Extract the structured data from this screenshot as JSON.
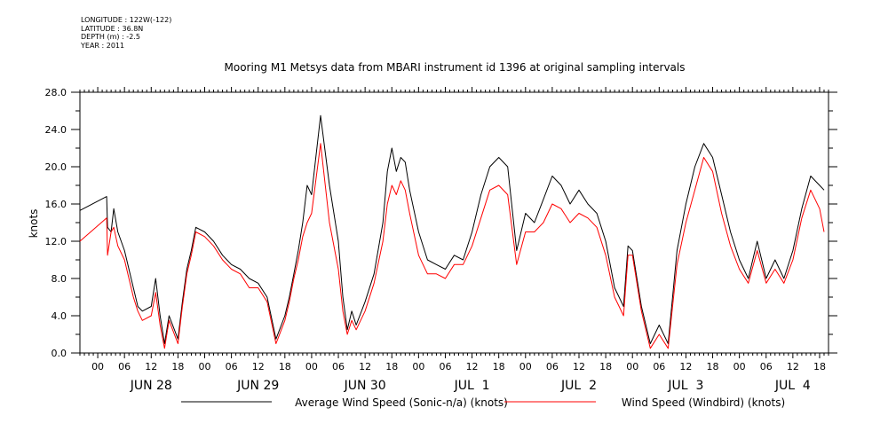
{
  "meta": {
    "longitude": "LONGITUDE : 122W(-122)",
    "latitude": "LATITUDE : 36.8N",
    "depth": "DEPTH (m) : -2.5",
    "year": "YEAR : 2011"
  },
  "chart_data": {
    "type": "line",
    "title": "Mooring M1 Metsys data from MBARI instrument id 1396 at original sampling intervals",
    "ylabel": "knots",
    "xlabel": "",
    "ylim": [
      0,
      28
    ],
    "xlim_hours": [
      -4,
      164
    ],
    "y_ticks": [
      "0.0",
      "4.0",
      "8.0",
      "12.0",
      "16.0",
      "20.0",
      "24.0",
      "28.0"
    ],
    "x_hour_ticks": [
      "00",
      "06",
      "12",
      "18",
      "00",
      "06",
      "12",
      "18",
      "00",
      "06",
      "12",
      "18",
      "00",
      "06",
      "12",
      "18",
      "00",
      "06",
      "12",
      "18",
      "00",
      "06",
      "12",
      "18",
      "00",
      "06",
      "12",
      "18"
    ],
    "day_labels": [
      "JUN 28",
      "JUN 29",
      "JUN 30",
      "JUL  1",
      "JUL  2",
      "JUL  3",
      "JUL  4"
    ],
    "grid": false,
    "legend_position": "bottom",
    "series": [
      {
        "name": "Average Wind Speed (Sonic-n/a) (knots)",
        "color": "#000000",
        "x": [
          -4,
          2,
          2.2,
          3,
          3.6,
          4.5,
          6,
          7,
          8,
          9,
          10,
          12,
          13,
          14,
          15,
          16,
          18,
          19,
          20,
          21,
          22,
          24,
          26,
          28,
          30,
          32,
          34,
          36,
          38,
          40,
          42,
          43,
          44,
          45,
          46,
          47,
          48,
          50,
          52,
          54,
          55,
          56,
          57,
          58,
          60,
          62,
          64,
          65,
          66,
          67,
          68,
          69,
          70,
          72,
          74,
          76,
          78,
          80,
          82,
          84,
          86,
          88,
          90,
          92,
          94,
          96,
          98,
          100,
          102,
          104,
          106,
          108,
          110,
          112,
          114,
          116,
          118,
          119,
          120,
          122,
          124,
          126,
          128,
          130,
          132,
          134,
          136,
          138,
          140,
          142,
          144,
          146,
          148,
          150,
          152,
          154,
          156,
          158,
          160,
          162,
          163
        ],
        "y": [
          15.3,
          16.8,
          13.5,
          13.0,
          15.5,
          13.0,
          11.0,
          9.0,
          7.0,
          5.0,
          4.5,
          5.0,
          8.0,
          4.0,
          1.0,
          4.0,
          1.5,
          5.5,
          9.0,
          11.0,
          13.5,
          13.0,
          12.0,
          10.5,
          9.5,
          9.0,
          8.0,
          7.5,
          6.0,
          1.5,
          4.0,
          6.0,
          8.5,
          11.0,
          14.0,
          18.0,
          17.0,
          25.5,
          18.0,
          12.0,
          6.0,
          2.5,
          4.5,
          3.0,
          5.5,
          8.5,
          14.0,
          19.5,
          22.0,
          19.5,
          21.0,
          20.5,
          17.5,
          13.0,
          10.0,
          9.5,
          9.0,
          10.5,
          10.0,
          13.0,
          17.0,
          20.0,
          21.0,
          20.0,
          11.0,
          15.0,
          14.0,
          16.5,
          19.0,
          18.0,
          16.0,
          17.5,
          16.0,
          15.0,
          12.0,
          7.0,
          5.0,
          11.5,
          11.0,
          5.0,
          1.0,
          3.0,
          1.0,
          11.0,
          16.0,
          20.0,
          22.5,
          21.0,
          17.0,
          13.0,
          10.0,
          8.0,
          12.0,
          8.0,
          10.0,
          8.0,
          11.0,
          15.5,
          19.0,
          18.0,
          17.5
        ]
      },
      {
        "name": "Wind Speed (Windbird) (knots)",
        "color": "#ff0000",
        "x": [
          -4,
          2,
          2.2,
          3,
          3.6,
          4.5,
          6,
          7,
          8,
          9,
          10,
          12,
          13,
          14,
          15,
          16,
          18,
          19,
          20,
          21,
          22,
          24,
          26,
          28,
          30,
          32,
          34,
          36,
          38,
          40,
          42,
          43,
          44,
          45,
          46,
          47,
          48,
          50,
          52,
          54,
          55,
          56,
          57,
          58,
          60,
          62,
          64,
          65,
          66,
          67,
          68,
          69,
          70,
          72,
          74,
          76,
          78,
          80,
          82,
          84,
          86,
          88,
          90,
          92,
          94,
          96,
          98,
          100,
          102,
          104,
          106,
          108,
          110,
          112,
          114,
          116,
          118,
          119,
          120,
          122,
          124,
          126,
          128,
          130,
          132,
          134,
          136,
          138,
          140,
          142,
          144,
          146,
          148,
          150,
          152,
          154,
          156,
          158,
          160,
          162,
          163
        ],
        "y": [
          12.0,
          14.5,
          10.5,
          13.0,
          13.5,
          11.5,
          10.0,
          8.0,
          6.0,
          4.5,
          3.5,
          4.0,
          6.5,
          3.0,
          0.5,
          3.5,
          1.0,
          5.0,
          8.5,
          10.5,
          13.0,
          12.5,
          11.5,
          10.0,
          9.0,
          8.5,
          7.0,
          7.0,
          5.5,
          1.0,
          3.5,
          5.5,
          8.0,
          10.0,
          12.5,
          14.0,
          15.0,
          22.5,
          14.0,
          9.0,
          4.5,
          2.0,
          3.5,
          2.5,
          4.5,
          7.5,
          12.0,
          16.0,
          18.0,
          17.0,
          18.5,
          17.5,
          15.0,
          10.5,
          8.5,
          8.5,
          8.0,
          9.5,
          9.5,
          11.5,
          14.5,
          17.5,
          18.0,
          17.0,
          9.5,
          13.0,
          13.0,
          14.0,
          16.0,
          15.5,
          14.0,
          15.0,
          14.5,
          13.5,
          10.5,
          6.0,
          4.0,
          10.5,
          10.5,
          4.5,
          0.5,
          2.0,
          0.5,
          9.5,
          14.0,
          17.5,
          21.0,
          19.5,
          15.0,
          11.5,
          9.0,
          7.5,
          11.0,
          7.5,
          9.0,
          7.5,
          10.0,
          14.5,
          17.5,
          15.5,
          13.0
        ]
      }
    ]
  }
}
